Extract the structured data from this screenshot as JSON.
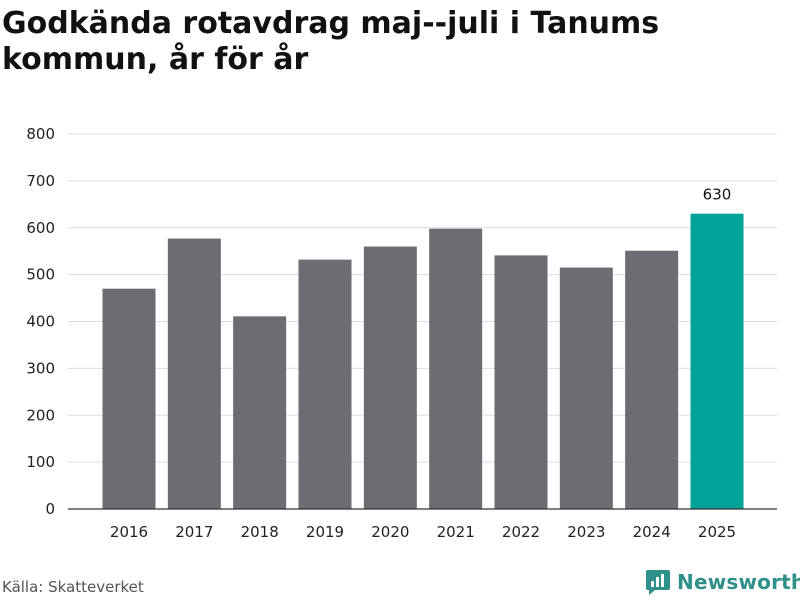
{
  "title": "Godkända rotavdrag maj--juli i Tanums kommun, år för år",
  "source": "Källa: Skatteverket",
  "brand": {
    "name": "Newsworthy",
    "icon": "bar-chart-bubble-icon",
    "color": "#2f8f8a"
  },
  "chart_data": {
    "type": "bar",
    "categories": [
      "2016",
      "2017",
      "2018",
      "2019",
      "2020",
      "2021",
      "2022",
      "2023",
      "2024",
      "2025"
    ],
    "values": [
      470,
      577,
      411,
      532,
      560,
      598,
      541,
      515,
      551,
      630
    ],
    "ylim": [
      0,
      800
    ],
    "yticks": [
      0,
      100,
      200,
      300,
      400,
      500,
      600,
      700,
      800
    ],
    "grid": true,
    "bar_color": "#6d6c72",
    "highlight_color": "#00a398",
    "highlight_index": 9,
    "data_labels": [
      {
        "index": 9,
        "text": "630"
      }
    ]
  }
}
